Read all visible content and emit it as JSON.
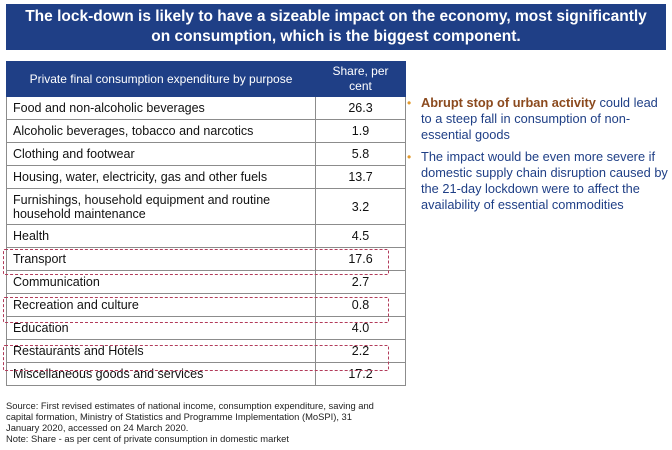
{
  "title": "The lock-down is likely to have a sizeable impact on the economy, most significantly on consumption, which is the biggest component.",
  "table": {
    "headers": [
      "Private final consumption expenditure by purpose",
      "Share, per cent"
    ],
    "rows": [
      {
        "label": "Food and non-alcoholic beverages",
        "value": "26.3"
      },
      {
        "label": "Alcoholic beverages, tobacco and narcotics",
        "value": "1.9"
      },
      {
        "label": "Clothing and footwear",
        "value": "5.8"
      },
      {
        "label": "Housing, water, electricity, gas and other fuels",
        "value": "13.7"
      },
      {
        "label": "Furnishings, household equipment and routine household maintenance",
        "value": "3.2"
      },
      {
        "label": "Health",
        "value": "4.5"
      },
      {
        "label": "Transport",
        "value": "17.6"
      },
      {
        "label": "Communication",
        "value": "2.7"
      },
      {
        "label": "Recreation and culture",
        "value": "0.8"
      },
      {
        "label": "Education",
        "value": "4.0"
      },
      {
        "label": "Restaurants and Hotels",
        "value": "2.2"
      },
      {
        "label": "Miscellaneous goods and services",
        "value": "17.2"
      }
    ],
    "highlighted_rows": [
      "Transport",
      "Recreation and culture",
      "Restaurants and Hotels"
    ]
  },
  "bullets": [
    {
      "emphasis": "Abrupt stop of urban activity",
      "text": " could lead to a steep fall in consumption of non-essential goods"
    },
    {
      "emphasis": "",
      "text": "The impact would be even more severe if domestic supply chain disruption caused by the 21-day lockdown were to affect the availability of essential commodities"
    }
  ],
  "footnote": {
    "source": "Source: First revised estimates of national income, consumption expenditure, saving and capital formation, Ministry of Statistics and Programme Implementation (MoSPI), 31 January 2020, accessed on 24 March 2020.",
    "note": "Note: Share - as per cent of private consumption in domestic market"
  },
  "colors": {
    "banner": "#1f3f86",
    "highlight_border": "#b23b5a",
    "bullet_text": "#1f3f86",
    "emphasis": "#8b4a1e",
    "bullet_marker": "#e39a2e"
  }
}
